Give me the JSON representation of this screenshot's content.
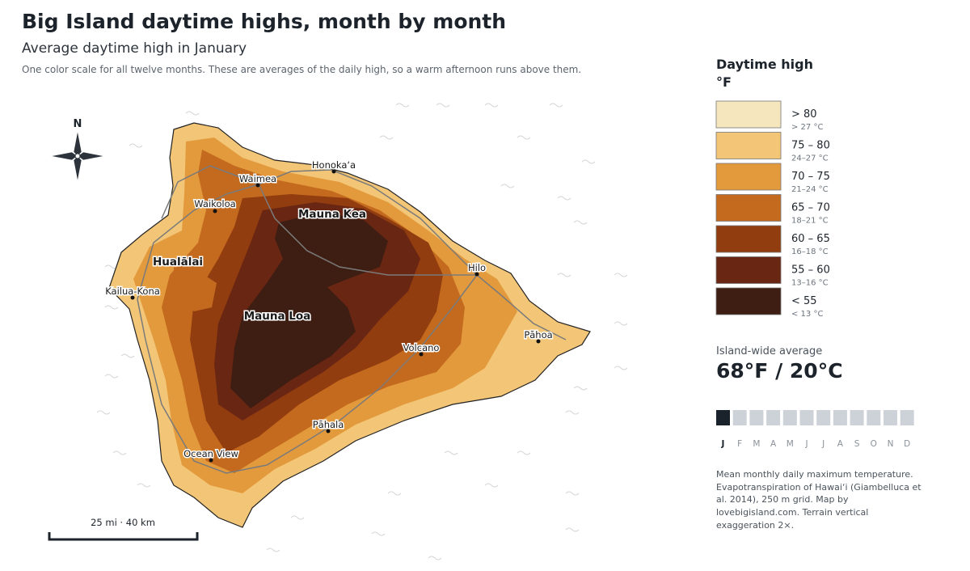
{
  "header": {
    "title": "Big Island daytime highs, month by month",
    "subtitle": "Average daytime high in January",
    "note": "One color scale for all twelve months. These are averages of the daily high, so a warm afternoon runs above them."
  },
  "map": {
    "compass": "N",
    "scale": "25 mi · 40 km",
    "places": [
      {
        "name": "Honoka‘a",
        "kind": "town"
      },
      {
        "name": "Waimea",
        "kind": "town"
      },
      {
        "name": "Waikoloa",
        "kind": "town"
      },
      {
        "name": "Mauna Kea",
        "kind": "peak"
      },
      {
        "name": "Hualālai",
        "kind": "peak"
      },
      {
        "name": "Kailua-Kona",
        "kind": "town"
      },
      {
        "name": "Hilo",
        "kind": "town"
      },
      {
        "name": "Mauna Loa",
        "kind": "peak"
      },
      {
        "name": "Volcano",
        "kind": "town"
      },
      {
        "name": "Pāhoa",
        "kind": "town"
      },
      {
        "name": "Pāhala",
        "kind": "town"
      },
      {
        "name": "Ocean View",
        "kind": "town"
      }
    ]
  },
  "legend": {
    "title": "Daytime high",
    "unit": "°F",
    "items": [
      {
        "label": "> 80",
        "sub": "> 27 °C",
        "color": "#f5e6bd"
      },
      {
        "label": "75 – 80",
        "sub": "24–27 °C",
        "color": "#f3c677"
      },
      {
        "label": "70 – 75",
        "sub": "21–24 °C",
        "color": "#e39a3c"
      },
      {
        "label": "65 – 70",
        "sub": "18–21 °C",
        "color": "#c46a1e"
      },
      {
        "label": "60 – 65",
        "sub": "16–18 °C",
        "color": "#923d10"
      },
      {
        "label": "55 – 60",
        "sub": "13–16 °C",
        "color": "#692612"
      },
      {
        "label": "< 55",
        "sub": "< 13 °C",
        "color": "#3e1d12"
      }
    ]
  },
  "average": {
    "label": "Island-wide average",
    "value": "68°F / 20°C"
  },
  "months": {
    "letters": [
      "J",
      "F",
      "M",
      "A",
      "M",
      "J",
      "J",
      "A",
      "S",
      "O",
      "N",
      "D"
    ],
    "selected": 0
  },
  "source": "Mean monthly daily maximum temperature. Evapotranspiration of Hawai‘i (Giambelluca et al. 2014), 250 m grid. Map by lovebigisland.com. Terrain vertical exaggeration 2×."
}
